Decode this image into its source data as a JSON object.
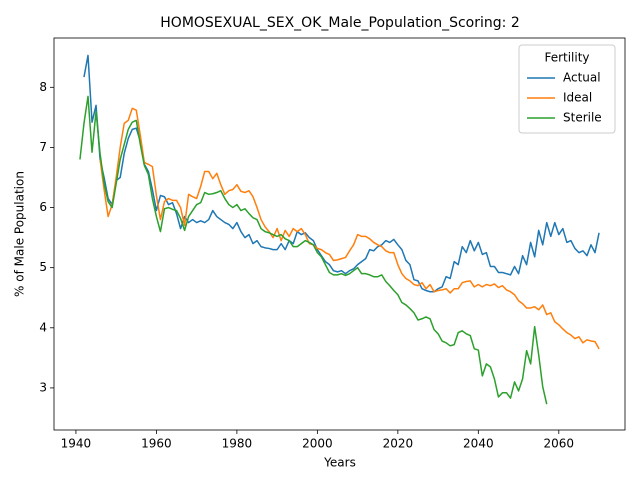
{
  "chart_data": {
    "type": "line",
    "title": "HOMOSEXUAL_SEX_OK_Male_Population_Scoring: 2",
    "x_label": "Years",
    "y_label": "% of Male Population",
    "legend_title": "Fertility",
    "legend": "upper right",
    "grid": false,
    "xlim": [
      1934.55,
      2076.45
    ],
    "xticks": [
      1940,
      1960,
      1980,
      2000,
      2020,
      2040,
      2060
    ],
    "ylim": [
      2.3,
      8.82
    ],
    "yticks": [
      3,
      4,
      5,
      6,
      7,
      8
    ],
    "x": [
      1941,
      1942,
      1943,
      1944,
      1945,
      1946,
      1947,
      1948,
      1949,
      1950,
      1951,
      1952,
      1953,
      1954,
      1955,
      1956,
      1957,
      1958,
      1959,
      1960,
      1961,
      1962,
      1963,
      1964,
      1965,
      1966,
      1967,
      1968,
      1969,
      1970,
      1971,
      1972,
      1973,
      1974,
      1975,
      1976,
      1977,
      1978,
      1979,
      1980,
      1981,
      1982,
      1983,
      1984,
      1985,
      1986,
      1987,
      1988,
      1989,
      1990,
      1991,
      1992,
      1993,
      1994,
      1995,
      1996,
      1997,
      1998,
      1999,
      2000,
      2001,
      2002,
      2003,
      2004,
      2005,
      2006,
      2007,
      2008,
      2009,
      2010,
      2011,
      2012,
      2013,
      2014,
      2015,
      2016,
      2017,
      2018,
      2019,
      2020,
      2021,
      2022,
      2023,
      2024,
      2025,
      2026,
      2027,
      2028,
      2029,
      2030,
      2031,
      2032,
      2033,
      2034,
      2035,
      2036,
      2037,
      2038,
      2039,
      2040,
      2041,
      2042,
      2043,
      2044,
      2045,
      2046,
      2047,
      2048,
      2049,
      2050,
      2051,
      2052,
      2053,
      2054,
      2055,
      2056,
      2057,
      2058,
      2059,
      2060,
      2061,
      2062,
      2063,
      2064,
      2065,
      2066,
      2067,
      2068,
      2069,
      2070
    ],
    "series": [
      {
        "name": "Actual",
        "color": "#1f77b4",
        "values": [
          null,
          8.17,
          8.53,
          7.42,
          7.7,
          6.8,
          6.5,
          6.15,
          6.05,
          6.45,
          6.5,
          6.9,
          7.15,
          7.3,
          7.32,
          7.1,
          6.72,
          6.6,
          6.3,
          5.95,
          6.2,
          6.18,
          6.05,
          6.08,
          5.9,
          5.65,
          5.85,
          5.75,
          5.8,
          5.75,
          5.78,
          5.75,
          5.8,
          5.95,
          5.85,
          5.8,
          5.75,
          5.72,
          5.65,
          5.75,
          5.6,
          5.5,
          5.55,
          5.4,
          5.45,
          5.35,
          5.33,
          5.32,
          5.3,
          5.3,
          5.4,
          5.3,
          5.45,
          5.4,
          5.6,
          5.55,
          5.58,
          5.5,
          5.45,
          5.3,
          5.2,
          5.1,
          5.05,
          4.95,
          4.93,
          4.95,
          4.9,
          4.95,
          4.98,
          5.05,
          5.1,
          5.15,
          5.3,
          5.28,
          5.35,
          5.38,
          5.45,
          5.42,
          5.47,
          5.38,
          5.3,
          5.12,
          5.05,
          4.8,
          4.78,
          4.65,
          4.62,
          4.6,
          4.6,
          4.65,
          4.68,
          4.85,
          4.82,
          5.1,
          5.05,
          5.35,
          5.25,
          5.45,
          5.28,
          5.42,
          5.22,
          5.25,
          5.02,
          5.02,
          4.92,
          4.92,
          4.9,
          4.88,
          5.02,
          4.9,
          5.2,
          5.05,
          5.42,
          5.18,
          5.62,
          5.38,
          5.75,
          5.52,
          5.75,
          5.55,
          5.65,
          5.42,
          5.45,
          5.32,
          5.25,
          5.28,
          5.2,
          5.38,
          5.25,
          5.58
        ]
      },
      {
        "name": "Ideal",
        "color": "#ff7f0e",
        "values": [
          null,
          null,
          null,
          null,
          null,
          6.8,
          6.3,
          5.85,
          6.05,
          6.5,
          7.0,
          7.4,
          7.45,
          7.65,
          7.62,
          7.2,
          6.75,
          6.72,
          6.68,
          6.2,
          5.8,
          6.1,
          6.15,
          6.12,
          6.12,
          6.0,
          5.7,
          6.22,
          6.18,
          6.15,
          6.35,
          6.6,
          6.6,
          6.48,
          6.57,
          6.38,
          6.22,
          6.28,
          6.3,
          6.38,
          6.27,
          6.25,
          6.28,
          6.18,
          6.0,
          5.8,
          5.68,
          5.6,
          5.5,
          5.65,
          5.45,
          5.62,
          5.52,
          5.65,
          5.6,
          5.65,
          5.55,
          5.4,
          5.38,
          5.32,
          5.3,
          5.25,
          5.22,
          5.12,
          5.13,
          5.15,
          5.17,
          5.28,
          5.38,
          5.55,
          5.52,
          5.52,
          5.48,
          5.42,
          5.38,
          5.35,
          5.28,
          5.25,
          5.25,
          5.05,
          4.9,
          4.82,
          4.78,
          4.72,
          4.7,
          4.75,
          4.65,
          4.72,
          4.6,
          4.62,
          4.63,
          4.65,
          4.58,
          4.65,
          4.65,
          4.75,
          4.77,
          4.78,
          4.68,
          4.72,
          4.68,
          4.72,
          4.7,
          4.73,
          4.67,
          4.7,
          4.63,
          4.6,
          4.55,
          4.45,
          4.4,
          4.33,
          4.33,
          4.35,
          4.3,
          4.38,
          4.22,
          4.25,
          4.1,
          4.05,
          3.98,
          3.92,
          3.88,
          3.82,
          3.85,
          3.75,
          3.8,
          3.78,
          3.77,
          3.65
        ]
      },
      {
        "name": "Sterile",
        "color": "#2ca02c",
        "values": [
          6.8,
          7.4,
          7.85,
          6.92,
          7.6,
          6.9,
          6.4,
          6.1,
          6.0,
          6.4,
          6.8,
          7.05,
          7.3,
          7.42,
          7.45,
          7.05,
          6.7,
          6.55,
          6.15,
          5.85,
          5.6,
          5.98,
          6.0,
          5.97,
          5.95,
          5.82,
          5.62,
          5.85,
          5.95,
          6.05,
          6.08,
          6.25,
          6.22,
          6.23,
          6.25,
          6.28,
          6.15,
          6.05,
          6.0,
          6.05,
          5.95,
          5.98,
          5.9,
          5.83,
          5.8,
          5.65,
          5.6,
          5.58,
          5.55,
          5.52,
          5.55,
          5.48,
          5.45,
          5.35,
          5.35,
          5.4,
          5.45,
          5.42,
          5.38,
          5.25,
          5.18,
          5.05,
          4.92,
          4.88,
          4.88,
          4.9,
          4.87,
          4.9,
          4.95,
          5.0,
          4.9,
          4.9,
          4.88,
          4.85,
          4.85,
          4.88,
          4.77,
          4.7,
          4.62,
          4.55,
          4.42,
          4.38,
          4.32,
          4.25,
          4.13,
          4.15,
          4.18,
          4.15,
          3.97,
          3.9,
          3.78,
          3.75,
          3.7,
          3.72,
          3.92,
          3.95,
          3.9,
          3.87,
          3.65,
          3.63,
          3.2,
          3.4,
          3.35,
          3.15,
          2.85,
          2.92,
          2.92,
          2.83,
          3.1,
          2.95,
          3.15,
          3.62,
          3.4,
          4.02,
          3.55,
          3.02,
          2.73,
          null,
          null,
          null,
          null,
          null,
          null,
          null,
          null,
          null,
          null,
          null,
          null,
          null
        ]
      }
    ]
  }
}
